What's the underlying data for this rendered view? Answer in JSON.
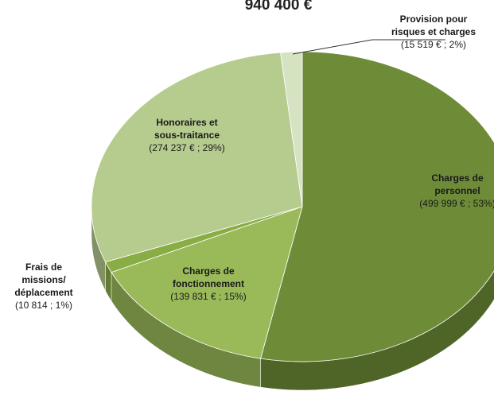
{
  "chart_data": {
    "type": "pie3d",
    "title": "940 400 €",
    "categories": [
      "Charges de personnel",
      "Charges de fonctionnement",
      "Frais de missions/ déplacement",
      "Honoraires et sous-traitance",
      "Provision pour risques et charges"
    ],
    "values": [
      499999,
      139831,
      10814,
      274237,
      15519
    ],
    "value_labels": [
      "(499 999 € ; 53%)",
      "(139 831 € ; 15%)",
      "(10 814  ; 1%)",
      "(274 237 € ; 29%)",
      "(15 519 € ; 2%)"
    ],
    "colors": [
      "#6e8c38",
      "#9aba5a",
      "#88ad45",
      "#b6cb8e",
      "#d6e3c2"
    ]
  }
}
